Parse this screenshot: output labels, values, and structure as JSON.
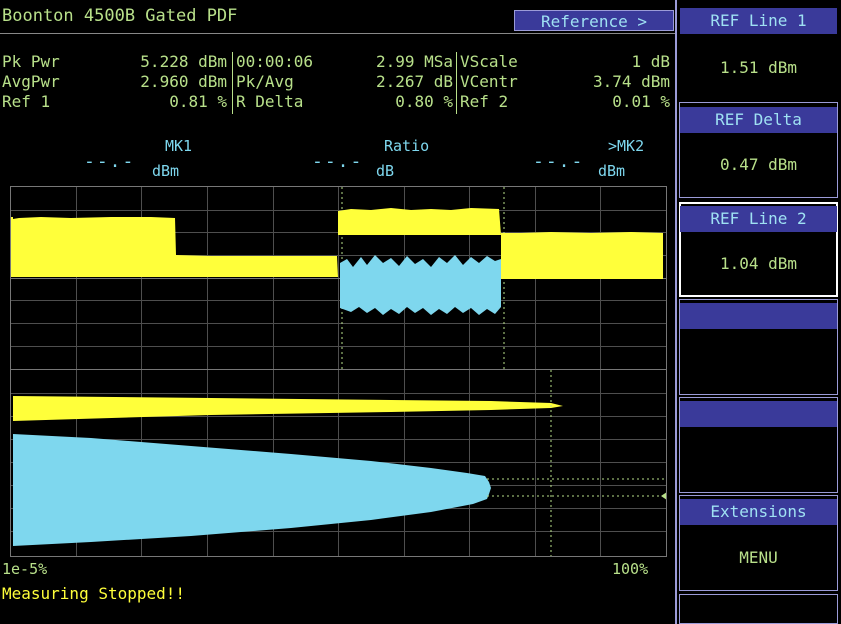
{
  "title": "Boonton 4500B Gated PDF",
  "reference_button": "Reference >",
  "measurements": {
    "col1": {
      "labels": [
        "Pk Pwr",
        "AvgPwr",
        "Ref 1"
      ],
      "values": [
        "5.228 dBm",
        "2.960 dBm",
        "0.81 %"
      ]
    },
    "col2": {
      "labels": [
        "00:00:06",
        "Pk/Avg",
        "R Delta"
      ],
      "values": [
        "2.99 MSa",
        "2.267 dB",
        "0.80 %"
      ]
    },
    "col3": {
      "labels": [
        "VScale",
        "VCentr",
        "Ref 2"
      ],
      "values": [
        "1 dB",
        "3.74 dBm",
        "0.01 %"
      ]
    }
  },
  "markers": {
    "mk1_label": "MK1",
    "mk1_value": "--.-",
    "mk1_unit": "dBm",
    "ratio_label": "Ratio",
    "ratio_value": "--.-",
    "ratio_unit": "dB",
    "mk2_label": ">MK2",
    "mk2_value": "--.-",
    "mk2_unit": "dBm"
  },
  "pdf_axis": {
    "left_label": "1e-5%",
    "right_label": "100%"
  },
  "status_text": "Measuring Stopped!!",
  "right_panel": {
    "ref_line1_label": "REF Line 1",
    "ref_line1_value": "1.51 dBm",
    "ref_delta_label": "REF Delta",
    "ref_delta_value": "0.47 dBm",
    "ref_line2_label": "REF Line 2",
    "ref_line2_value": "1.04 dBm",
    "extensions_label": "Extensions",
    "menu_value": "MENU"
  },
  "colors": {
    "trace_yellow": "#ffff3a",
    "trace_cyan": "#7ed7ee",
    "text_green": "#b8e08a",
    "button_blue": "#3a3a9a"
  }
}
